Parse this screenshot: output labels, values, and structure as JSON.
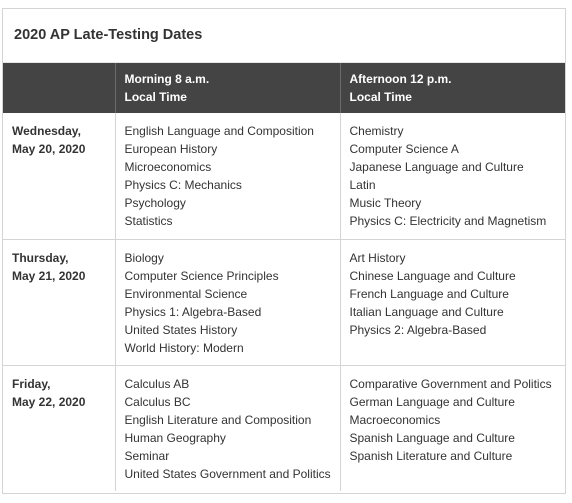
{
  "title": "2020 AP Late-Testing Dates",
  "headers": {
    "col1": "",
    "morning_line1": "Morning 8 a.m.",
    "morning_line2": "Local Time",
    "afternoon_line1": "Afternoon 12 p.m.",
    "afternoon_line2": "Local Time"
  },
  "rows": [
    {
      "day_line1": "Wednesday,",
      "day_line2": "May 20, 2020",
      "morning": [
        "English Language and Composition",
        "European History",
        "Microeconomics",
        "Physics C: Mechanics",
        "Psychology",
        "Statistics"
      ],
      "afternoon": [
        "Chemistry",
        "Computer Science A",
        "Japanese Language and Culture",
        "Latin",
        "Music Theory",
        "Physics C: Electricity and Magnetism"
      ]
    },
    {
      "day_line1": "Thursday,",
      "day_line2": "May 21, 2020",
      "morning": [
        "Biology",
        "Computer Science Principles",
        "Environmental Science",
        "Physics 1: Algebra-Based",
        "United States History",
        "World History: Modern"
      ],
      "afternoon": [
        "Art History",
        "Chinese Language and Culture",
        "French Language and Culture",
        "Italian Language and Culture",
        "Physics 2: Algebra-Based"
      ]
    },
    {
      "day_line1": "Friday,",
      "day_line2": "May 22, 2020",
      "morning": [
        "Calculus AB",
        "Calculus BC",
        "English Literature and Composition",
        "Human Geography",
        "Seminar",
        "United States Government and Politics"
      ],
      "afternoon": [
        "Comparative Government and Politics",
        "German Language and Culture",
        "Macroeconomics",
        "Spanish Language and Culture",
        "Spanish Literature and Culture"
      ]
    }
  ]
}
